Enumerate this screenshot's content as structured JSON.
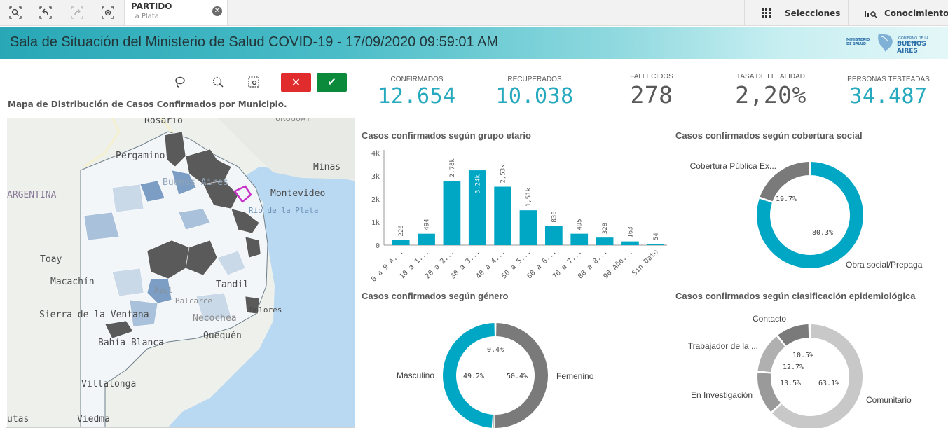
{
  "toolbar": {
    "selection_field": "PARTIDO",
    "selection_value": "La Plata",
    "selecciones_label": "Selecciones",
    "conocimientos_label": "Conocimientos"
  },
  "header": {
    "title": "Sala de Situación del Ministerio de Salud COVID-19 - 17/09/2020 09:59:01 AM",
    "logo_left": "MINISTERIO DE SALUD",
    "logo_small": "GOBIERNO DE LA PROVINCIA DE",
    "logo_main": "BUENOS AIRES"
  },
  "map": {
    "title": "Mapa de Distribución de Casos Confirmados por Municipio.",
    "places": [
      "Rosario",
      "URUGUAY",
      "Pergamino",
      "Buenos Aires",
      "Minas",
      "ARGENTINA",
      "Montevideo",
      "Río de la Plata",
      "Toay",
      "Macachín",
      "Tandil",
      "Sierra de la Ventana",
      "Bahía Blanca",
      "Necochea",
      "Quequén",
      "Balcarce",
      "Villalonga",
      "Viedma",
      "utas",
      "Dolores",
      "Azul"
    ],
    "colors": {
      "dark": "#5a5a5a",
      "mid": "#7d9ec4",
      "light": "#c9d9e8",
      "pale": "#f2f6f9",
      "water": "#b9d8f2",
      "land": "#eef0ec",
      "selected": "#c833c8"
    }
  },
  "kpis": [
    {
      "label": "CONFIRMADOS",
      "value": "12.654",
      "color": "#26a9be"
    },
    {
      "label": "RECUPERADOS",
      "value": "10.038",
      "color": "#26a9be"
    },
    {
      "label": "FALLECIDOS",
      "value": "278",
      "color": "#595959"
    },
    {
      "label": "TASA DE LETALIDAD",
      "value": "2,20%",
      "color": "#595959"
    },
    {
      "label": "PERSONAS TESTEADAS",
      "value": "34.487",
      "color": "#26a9be"
    }
  ],
  "charts": {
    "age_title": "Casos confirmados según grupo etario",
    "coverage_title": "Casos confirmados según cobertura social",
    "gender_title": "Casos confirmados según género",
    "epi_title": "Casos confirmados según clasificación epidemiológica"
  },
  "chart_data": [
    {
      "type": "bar",
      "title": "Casos confirmados según grupo etario",
      "categories": [
        "0 a 9 A...",
        "10 a 1...",
        "20 a 2...",
        "30 a 3...",
        "40 a 4...",
        "50 a 5...",
        "60 a 6...",
        "70 a 7...",
        "80 a 8...",
        "90 Año...",
        "Sin Dato"
      ],
      "values": [
        226,
        494,
        2780,
        3240,
        2530,
        1510,
        830,
        495,
        328,
        163,
        54
      ],
      "value_labels": [
        "226",
        "494",
        "2,78k",
        "3,24k",
        "2,53k",
        "1,51k",
        "830",
        "495",
        "328",
        "163",
        "54"
      ],
      "y_ticks": [
        "0",
        "1k",
        "2k",
        "3k",
        "4k"
      ],
      "ylim": [
        0,
        4000
      ],
      "color": "#00a7c4"
    },
    {
      "type": "pie",
      "title": "Casos confirmados según cobertura social",
      "slices": [
        {
          "name": "Cobertura Pública Ex...",
          "value": 19.7,
          "label": "19.7%",
          "color": "#7a7a7a"
        },
        {
          "name": "Obra social/Prepaga",
          "value": 80.3,
          "label": "80.3%",
          "color": "#00a7c4"
        }
      ]
    },
    {
      "type": "pie",
      "title": "Casos confirmados según género",
      "slices": [
        {
          "name": "Femenino",
          "value": 50.4,
          "label": "50.4%",
          "color": "#7a7a7a"
        },
        {
          "name": "Masculino",
          "value": 49.2,
          "label": "49.2%",
          "color": "#00a7c4"
        },
        {
          "name": "",
          "value": 0.4,
          "label": "0.4%",
          "color": "#bdbdbd"
        }
      ]
    },
    {
      "type": "pie",
      "title": "Casos confirmados según clasificación epidemiológica",
      "slices": [
        {
          "name": "Comunitario",
          "value": 63.1,
          "label": "63.1%",
          "color": "#c8c8c8"
        },
        {
          "name": "En Investigación",
          "value": 13.5,
          "label": "13.5%",
          "color": "#9a9a9a"
        },
        {
          "name": "Trabajador de la ...",
          "value": 12.7,
          "label": "12.7%",
          "color": "#b0b0b0"
        },
        {
          "name": "Contacto",
          "value": 10.5,
          "label": "10.5%",
          "color": "#7a7a7a"
        }
      ]
    }
  ]
}
